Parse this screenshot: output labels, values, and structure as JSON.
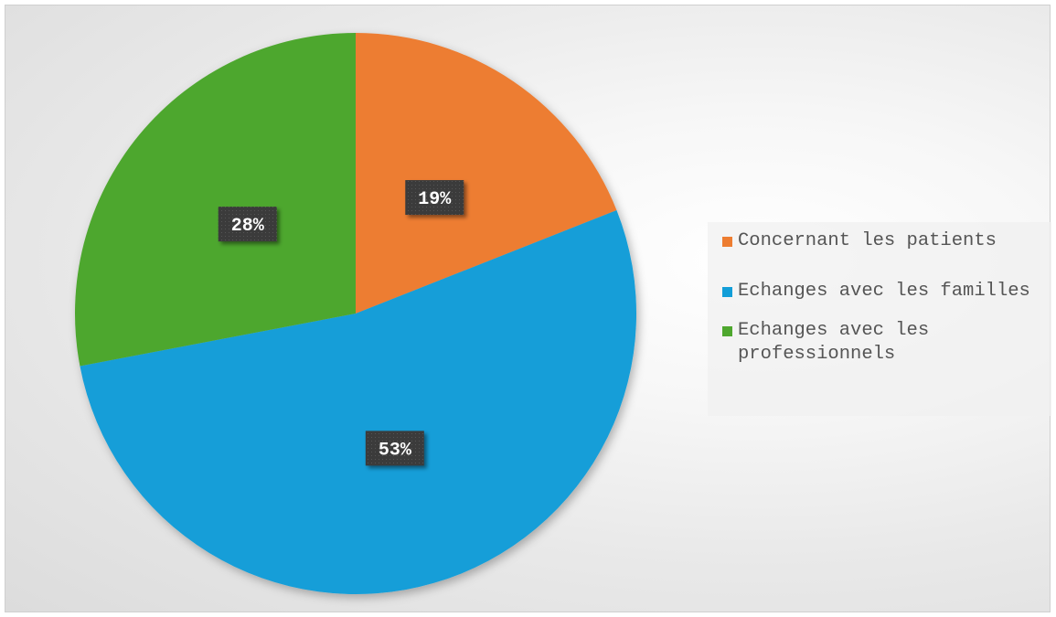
{
  "chart_data": {
    "type": "pie",
    "categories": [
      "Concernant les patients",
      "Echanges avec les familles",
      "Echanges avec les professionnels"
    ],
    "values": [
      19,
      53,
      28
    ],
    "data_labels": [
      "19%",
      "53%",
      "28%"
    ],
    "colors": [
      "#ED7D31",
      "#129ED8",
      "#4EA72E"
    ],
    "start_angle": "12 o'clock",
    "direction": "clockwise",
    "legend_position": "right",
    "legend": [
      "Concernant les patients",
      "Echanges avec les familles",
      "Echanges avec les professionnels"
    ]
  }
}
